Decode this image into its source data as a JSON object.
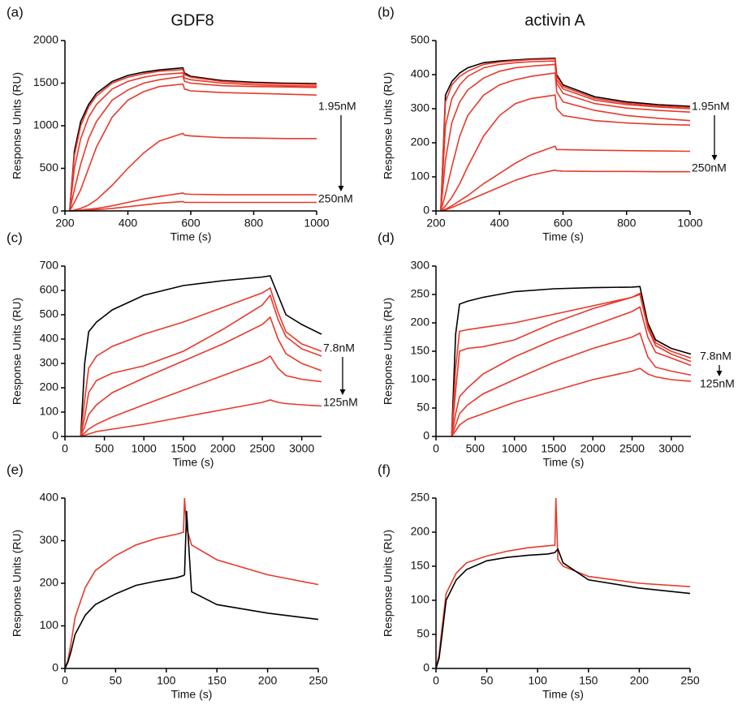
{
  "chart_data": [
    {
      "type": "line",
      "label": "(a)",
      "title": "GDF8",
      "y_label": "Response Units (RU)",
      "x_label": "Time (s)",
      "annotations": [
        "1.95nM",
        "250nM"
      ],
      "x": [
        215,
        230,
        250,
        275,
        300,
        350,
        400,
        450,
        500,
        575,
        580,
        600,
        700,
        800,
        900,
        1000
      ],
      "series": [
        {
          "color": "#000000",
          "values": [
            0,
            700,
            1050,
            1250,
            1380,
            1520,
            1590,
            1630,
            1655,
            1680,
            1620,
            1580,
            1530,
            1510,
            1500,
            1495
          ]
        },
        {
          "color": "#e8392b",
          "values": [
            0,
            650,
            1000,
            1220,
            1350,
            1500,
            1570,
            1610,
            1640,
            1660,
            1600,
            1570,
            1520,
            1500,
            1490,
            1485
          ]
        },
        {
          "color": "#e8392b",
          "values": [
            0,
            500,
            850,
            1100,
            1250,
            1430,
            1520,
            1570,
            1600,
            1620,
            1560,
            1540,
            1500,
            1480,
            1470,
            1465
          ]
        },
        {
          "color": "#e8392b",
          "values": [
            0,
            250,
            550,
            850,
            1050,
            1300,
            1420,
            1500,
            1540,
            1580,
            1520,
            1500,
            1470,
            1460,
            1455,
            1450
          ]
        },
        {
          "color": "#e8392b",
          "values": [
            0,
            100,
            250,
            500,
            750,
            1100,
            1300,
            1400,
            1460,
            1490,
            1430,
            1410,
            1390,
            1380,
            1370,
            1360
          ]
        },
        {
          "color": "#e8392b",
          "values": [
            0,
            10,
            30,
            70,
            130,
            300,
            500,
            680,
            820,
            910,
            890,
            880,
            860,
            855,
            850,
            850
          ]
        },
        {
          "color": "#e8392b",
          "values": [
            0,
            5,
            10,
            20,
            30,
            60,
            100,
            140,
            170,
            210,
            200,
            195,
            190,
            190,
            190,
            190
          ]
        },
        {
          "color": "#e8392b",
          "values": [
            0,
            2,
            5,
            10,
            15,
            30,
            50,
            70,
            90,
            110,
            100,
            100,
            100,
            100,
            100,
            100
          ]
        }
      ],
      "xlim": [
        200,
        1000
      ],
      "xticks": [
        200,
        400,
        600,
        800,
        1000
      ],
      "ylim": [
        0,
        2000
      ],
      "yticks": [
        0,
        500,
        1000,
        1500,
        2000
      ]
    },
    {
      "type": "line",
      "label": "(b)",
      "title": "activin A",
      "y_label": "Response Units (RU)",
      "x_label": "Time (s)",
      "annotations": [
        "1.95nM",
        "250nM"
      ],
      "x": [
        215,
        230,
        250,
        275,
        300,
        350,
        400,
        450,
        500,
        575,
        580,
        600,
        700,
        800,
        900,
        1000
      ],
      "series": [
        {
          "color": "#000000",
          "values": [
            0,
            340,
            380,
            405,
            420,
            435,
            440,
            443,
            446,
            448,
            400,
            370,
            335,
            320,
            312,
            307
          ]
        },
        {
          "color": "#e8392b",
          "values": [
            0,
            320,
            370,
            395,
            410,
            430,
            437,
            441,
            444,
            446,
            395,
            365,
            330,
            316,
            308,
            304
          ]
        },
        {
          "color": "#e8392b",
          "values": [
            0,
            250,
            330,
            370,
            395,
            420,
            430,
            435,
            438,
            440,
            385,
            358,
            325,
            312,
            305,
            300
          ]
        },
        {
          "color": "#e8392b",
          "values": [
            0,
            150,
            260,
            320,
            355,
            390,
            410,
            420,
            425,
            430,
            375,
            345,
            315,
            302,
            295,
            290
          ]
        },
        {
          "color": "#e8392b",
          "values": [
            0,
            50,
            130,
            220,
            280,
            340,
            370,
            385,
            395,
            405,
            350,
            320,
            295,
            280,
            272,
            265
          ]
        },
        {
          "color": "#e8392b",
          "values": [
            0,
            15,
            40,
            80,
            130,
            220,
            280,
            315,
            330,
            340,
            300,
            280,
            265,
            258,
            254,
            252
          ]
        },
        {
          "color": "#e8392b",
          "values": [
            0,
            5,
            15,
            30,
            45,
            80,
            110,
            140,
            165,
            190,
            180,
            180,
            178,
            177,
            176,
            175
          ]
        },
        {
          "color": "#e8392b",
          "values": [
            0,
            3,
            10,
            20,
            30,
            50,
            70,
            90,
            105,
            120,
            118,
            117,
            116,
            116,
            115,
            115
          ]
        }
      ],
      "xlim": [
        200,
        1000
      ],
      "xticks": [
        200,
        400,
        600,
        800,
        1000
      ],
      "ylim": [
        0,
        500
      ],
      "yticks": [
        0,
        100,
        200,
        300,
        400,
        500
      ]
    },
    {
      "type": "line",
      "label": "(c)",
      "y_label": "Response Units (RU)",
      "x_label": "Time (s)",
      "annotations": [
        "7.8nM",
        "125nM"
      ],
      "x": [
        200,
        250,
        300,
        400,
        600,
        1000,
        1500,
        2000,
        2500,
        2600,
        2700,
        2800,
        3000,
        3250
      ],
      "series": [
        {
          "color": "#000000",
          "values": [
            0,
            300,
            430,
            470,
            520,
            580,
            620,
            640,
            655,
            660,
            580,
            500,
            460,
            420
          ]
        },
        {
          "color": "#e8392b",
          "values": [
            0,
            150,
            280,
            330,
            370,
            420,
            470,
            530,
            590,
            610,
            510,
            430,
            380,
            350
          ]
        },
        {
          "color": "#e8392b",
          "values": [
            0,
            80,
            180,
            230,
            260,
            290,
            350,
            440,
            540,
            580,
            480,
            410,
            360,
            330
          ]
        },
        {
          "color": "#e8392b",
          "values": [
            0,
            40,
            90,
            130,
            180,
            240,
            310,
            380,
            460,
            490,
            400,
            340,
            300,
            270
          ]
        },
        {
          "color": "#e8392b",
          "values": [
            0,
            15,
            30,
            50,
            80,
            130,
            190,
            250,
            310,
            330,
            280,
            250,
            235,
            225
          ]
        },
        {
          "color": "#e8392b",
          "values": [
            0,
            5,
            10,
            20,
            30,
            50,
            80,
            110,
            140,
            150,
            140,
            135,
            130,
            125
          ]
        }
      ],
      "xlim": [
        0,
        3250
      ],
      "xticks": [
        0,
        500,
        1000,
        1500,
        2000,
        2500,
        3000
      ],
      "ylim": [
        0,
        700
      ],
      "yticks": [
        0,
        100,
        200,
        300,
        400,
        500,
        600,
        700
      ]
    },
    {
      "type": "line",
      "label": "(d)",
      "y_label": "Response Units (RU)",
      "x_label": "Time (s)",
      "annotations": [
        "7.8nM",
        "125nM"
      ],
      "x": [
        200,
        250,
        300,
        400,
        600,
        1000,
        1500,
        2000,
        2500,
        2600,
        2700,
        2800,
        3000,
        3250
      ],
      "series": [
        {
          "color": "#000000",
          "values": [
            0,
            180,
            233,
            238,
            245,
            255,
            260,
            262,
            263,
            264,
            200,
            170,
            155,
            145
          ]
        },
        {
          "color": "#e8392b",
          "values": [
            0,
            120,
            185,
            188,
            192,
            200,
            215,
            230,
            245,
            252,
            195,
            165,
            150,
            138
          ]
        },
        {
          "color": "#e8392b",
          "values": [
            0,
            80,
            150,
            155,
            158,
            170,
            200,
            225,
            245,
            250,
            190,
            160,
            145,
            132
          ]
        },
        {
          "color": "#e8392b",
          "values": [
            0,
            40,
            70,
            85,
            110,
            140,
            170,
            195,
            220,
            228,
            175,
            148,
            138,
            125
          ]
        },
        {
          "color": "#e8392b",
          "values": [
            0,
            20,
            40,
            55,
            75,
            100,
            130,
            155,
            175,
            182,
            140,
            122,
            115,
            108
          ]
        },
        {
          "color": "#e8392b",
          "values": [
            0,
            10,
            20,
            30,
            40,
            60,
            80,
            100,
            115,
            120,
            110,
            105,
            100,
            97
          ]
        }
      ],
      "xlim": [
        0,
        3250
      ],
      "xticks": [
        0,
        500,
        1000,
        1500,
        2000,
        2500,
        3000
      ],
      "ylim": [
        0,
        300
      ],
      "yticks": [
        0,
        50,
        100,
        150,
        200,
        250,
        300
      ]
    },
    {
      "type": "line",
      "label": "(e)",
      "y_label": "Response Units (RU)",
      "x_label": "Time (s)",
      "x": [
        0,
        3,
        6,
        10,
        20,
        30,
        50,
        70,
        90,
        110,
        117,
        118,
        120,
        125,
        150,
        200,
        250
      ],
      "series": [
        {
          "color": "#e8392b",
          "values": [
            0,
            20,
            60,
            120,
            190,
            230,
            265,
            290,
            305,
            315,
            320,
            400,
            330,
            290,
            255,
            220,
            197
          ]
        },
        {
          "color": "#000000",
          "values": [
            0,
            15,
            40,
            80,
            125,
            150,
            175,
            195,
            205,
            213,
            218,
            220,
            370,
            180,
            150,
            130,
            115
          ]
        }
      ],
      "xlim": [
        0,
        250
      ],
      "xticks": [
        0,
        50,
        100,
        150,
        200,
        250
      ],
      "ylim": [
        0,
        400
      ],
      "yticks": [
        0,
        100,
        200,
        300,
        400
      ]
    },
    {
      "type": "line",
      "label": "(f)",
      "y_label": "Response Units (RU)",
      "x_label": "Time (s)",
      "x": [
        0,
        3,
        6,
        10,
        20,
        30,
        50,
        70,
        90,
        110,
        117,
        118,
        120,
        125,
        150,
        200,
        250
      ],
      "series": [
        {
          "color": "#e8392b",
          "values": [
            0,
            20,
            60,
            110,
            140,
            155,
            165,
            172,
            177,
            180,
            181,
            250,
            160,
            150,
            135,
            125,
            120
          ]
        },
        {
          "color": "#000000",
          "values": [
            0,
            15,
            50,
            100,
            130,
            145,
            158,
            163,
            166,
            168,
            170,
            172,
            175,
            155,
            130,
            118,
            110
          ]
        }
      ],
      "xlim": [
        0,
        250
      ],
      "xticks": [
        0,
        50,
        100,
        150,
        200,
        250
      ],
      "ylim": [
        0,
        250
      ],
      "yticks": [
        0,
        50,
        100,
        150,
        200,
        250
      ]
    }
  ]
}
